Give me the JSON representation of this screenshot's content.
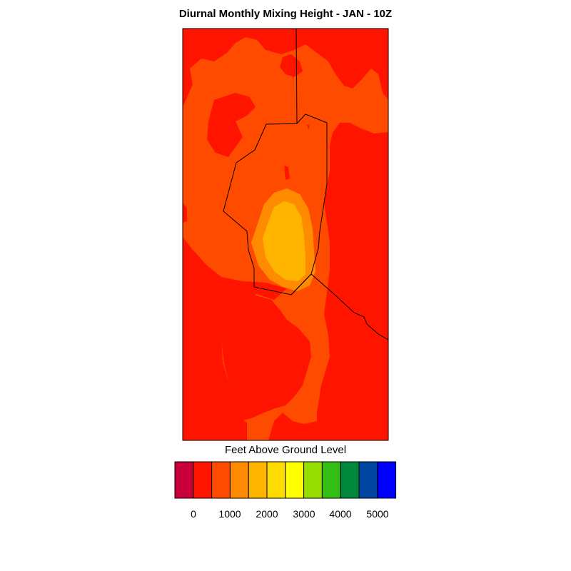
{
  "title": "Diurnal Monthly Mixing Height - JAN - 10Z",
  "colorbar": {
    "label": "Feet Above Ground Level",
    "colors": [
      "#c8003c",
      "#ff1400",
      "#ff4b00",
      "#ff8c00",
      "#ffb400",
      "#ffdc00",
      "#ffff00",
      "#96dc00",
      "#32be14",
      "#00873c",
      "#0046a0",
      "#0000ff"
    ],
    "tick_labels": [
      "0",
      "1000",
      "2000",
      "3000",
      "4000",
      "5000"
    ]
  },
  "field_colors": {
    "red": "#ff1400",
    "orange_red": "#ff4b00",
    "orange": "#ff8c00",
    "amber": "#ffb400"
  }
}
